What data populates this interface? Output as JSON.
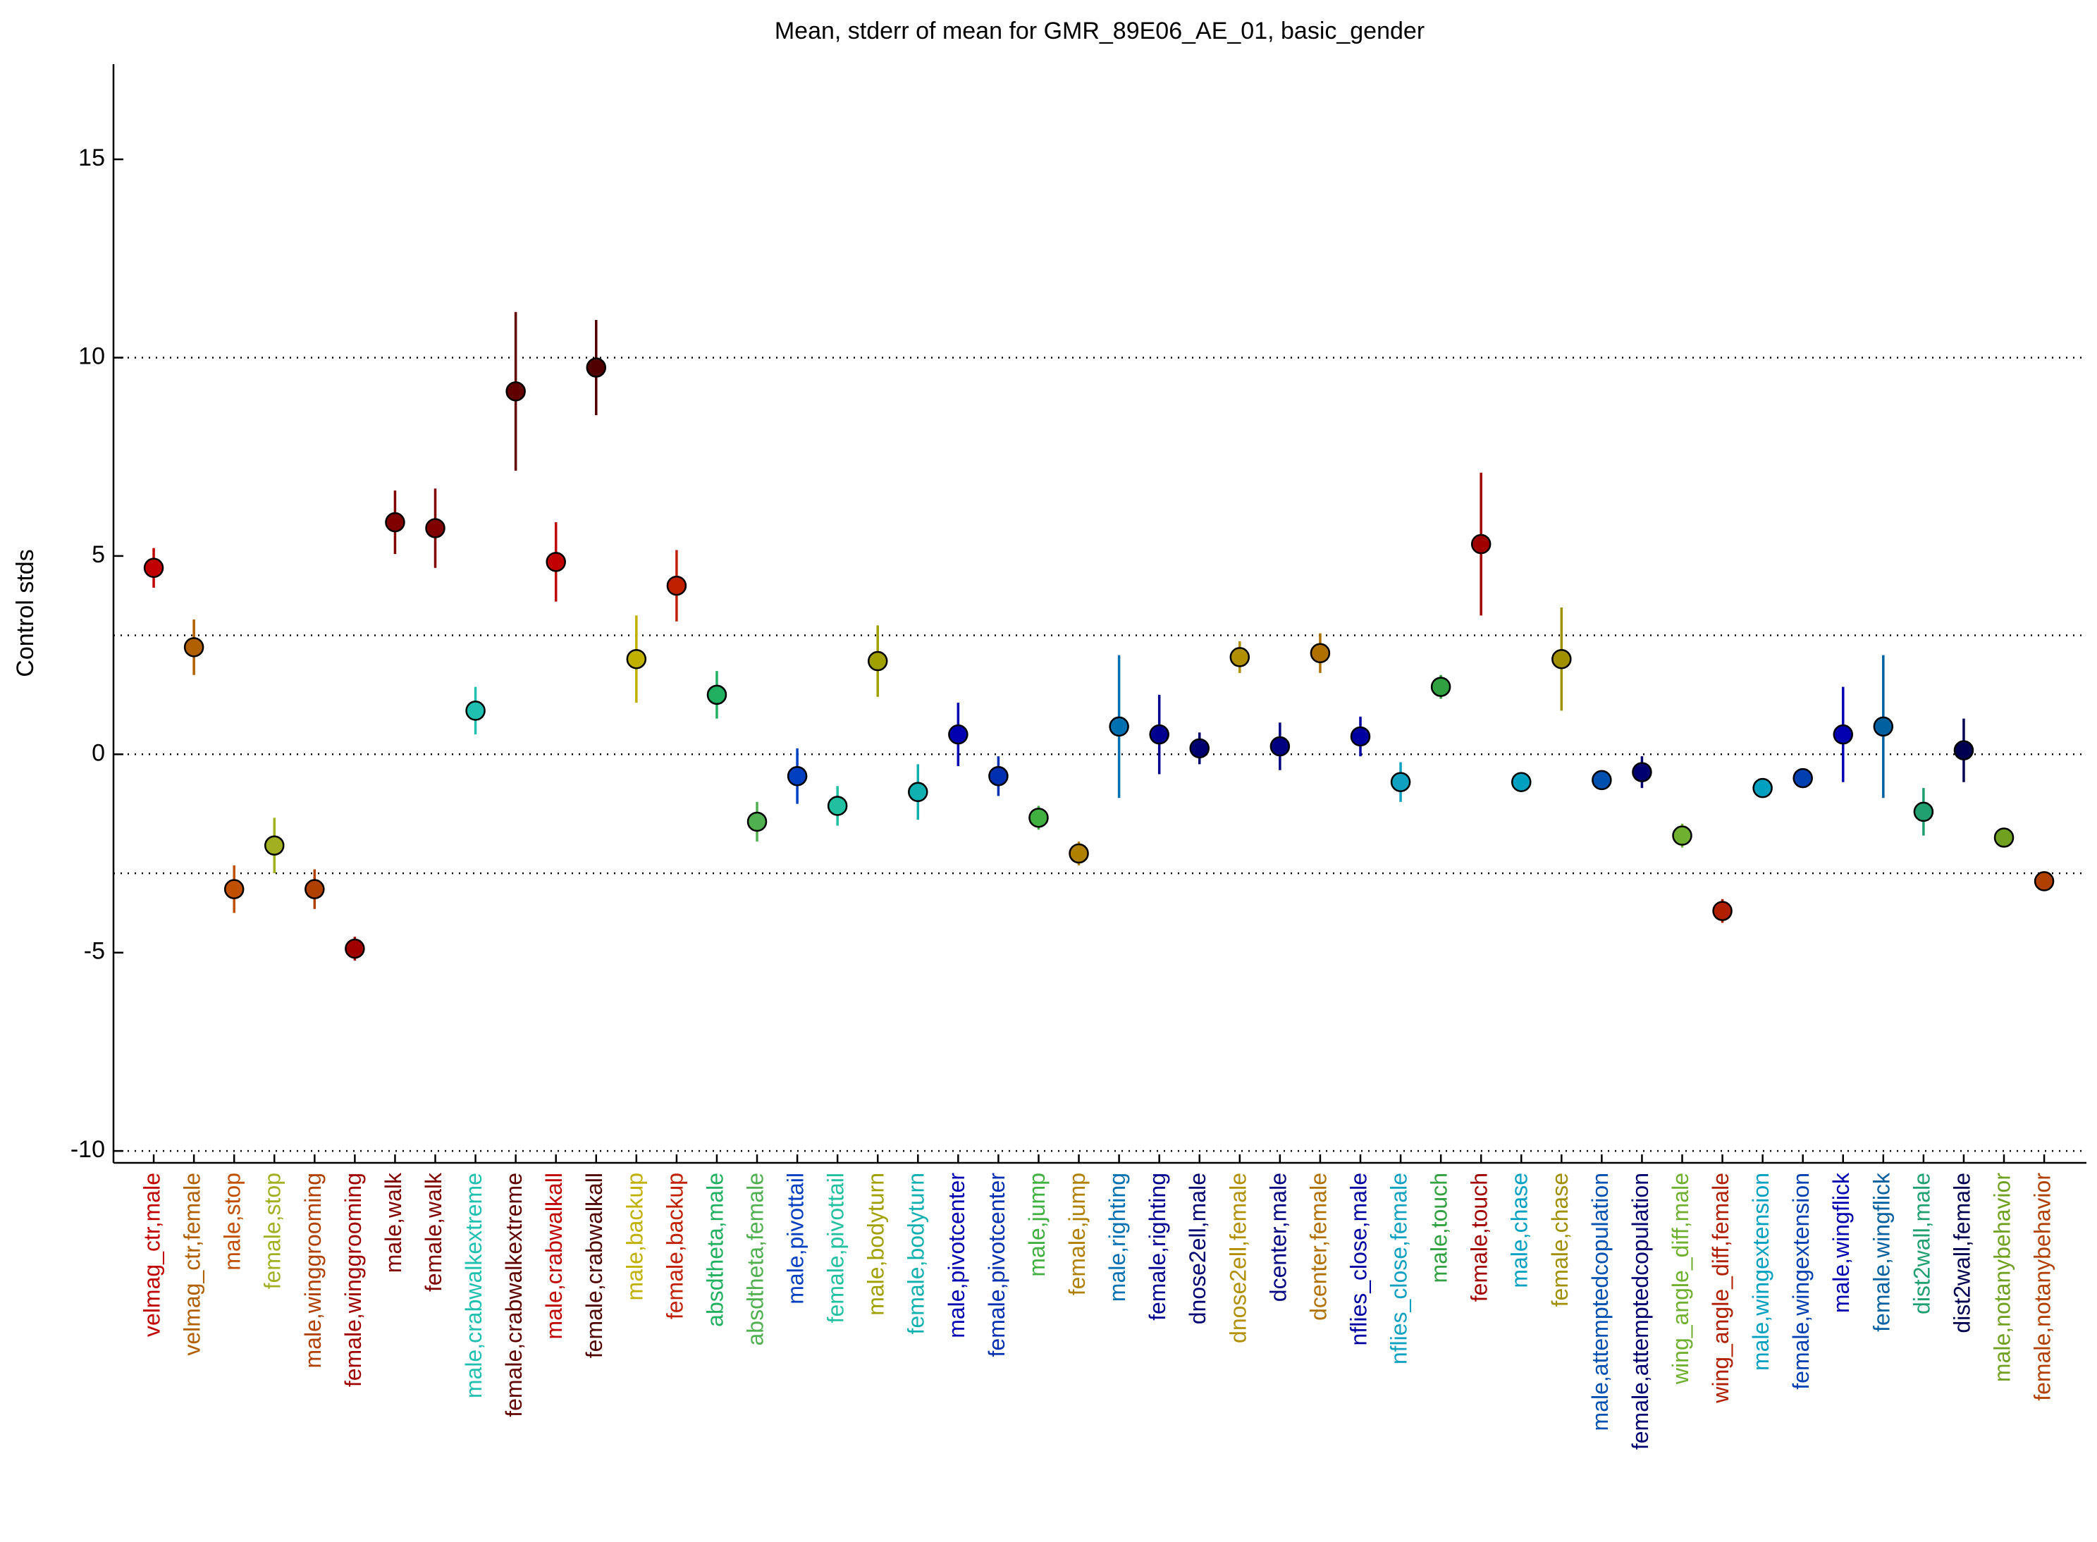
{
  "chart_data": {
    "type": "errorbar",
    "title": "Mean, stderr of mean for GMR_89E06_AE_01, basic_gender",
    "ylabel": "Control stds",
    "categories": [
      "velmag_ctr,male",
      "velmag_ctr,female",
      "male,stop",
      "female,stop",
      "male,winggrooming",
      "female,winggrooming",
      "male,walk",
      "female,walk",
      "male,crabwalkextreme",
      "female,crabwalkextreme",
      "male,crabwalkall",
      "female,crabwalkall",
      "male,backup",
      "female,backup",
      "absdtheta,male",
      "absdtheta,female",
      "male,pivottail",
      "female,pivottail",
      "male,bodyturn",
      "female,bodyturn",
      "male,pivotcenter",
      "female,pivotcenter",
      "male,jump",
      "female,jump",
      "male,righting",
      "female,righting",
      "dnose2ell,male",
      "dnose2ell,female",
      "dcenter,male",
      "dcenter,female",
      "nflies_close,male",
      "nflies_close,female",
      "male,touch",
      "female,touch",
      "male,chase",
      "female,chase",
      "male,attemptedcopulation",
      "female,attemptedcopulation",
      "wing_angle_diff,male",
      "wing_angle_diff,female",
      "male,wingextension",
      "female,wingextension",
      "male,wingflick",
      "female,wingflick",
      "dist2wall,male",
      "dist2wall,female",
      "male,notanybehavior",
      "female,notanybehavior"
    ],
    "values": [
      4.7,
      2.7,
      -3.4,
      -2.3,
      -3.4,
      -4.9,
      5.85,
      5.7,
      1.1,
      9.15,
      4.85,
      9.75,
      2.4,
      4.25,
      1.5,
      -1.7,
      -0.55,
      -1.3,
      2.35,
      -0.95,
      0.5,
      -0.55,
      -1.6,
      -2.5,
      0.7,
      0.5,
      0.15,
      2.45,
      0.2,
      2.55,
      0.45,
      -0.7,
      1.7,
      5.3,
      -0.7,
      2.4,
      -0.65,
      -0.45,
      -2.05,
      -3.95,
      -0.85,
      -0.6,
      0.5,
      0.7,
      -1.45,
      0.1,
      -2.1,
      -3.2
    ],
    "errors": [
      0.5,
      0.7,
      0.6,
      0.7,
      0.5,
      0.3,
      0.8,
      1.0,
      0.6,
      2.0,
      1.0,
      1.2,
      1.1,
      0.9,
      0.6,
      0.5,
      0.7,
      0.5,
      0.9,
      0.7,
      0.8,
      0.5,
      0.3,
      0.3,
      1.8,
      1.0,
      0.4,
      0.4,
      0.6,
      0.5,
      0.5,
      0.5,
      0.3,
      1.8,
      0.2,
      1.3,
      0.2,
      0.4,
      0.3,
      0.3,
      0.1,
      0.1,
      1.2,
      1.8,
      0.6,
      0.8,
      0.2,
      0.2
    ],
    "colors": [
      "#c00000",
      "#b06000",
      "#c05000",
      "#a0b020",
      "#b04000",
      "#a00000",
      "#800000",
      "#800000",
      "#20c0b0",
      "#600000",
      "#c00000",
      "#500000",
      "#c0b000",
      "#c02000",
      "#20b060",
      "#50b050",
      "#0040c0",
      "#20c0a0",
      "#a0a000",
      "#10b0b0",
      "#0000b0",
      "#0030b0",
      "#40b040",
      "#b08000",
      "#0070b0",
      "#000090",
      "#000070",
      "#b09000",
      "#000080",
      "#b07000",
      "#0000a0",
      "#10a0c0",
      "#30a040",
      "#a00000",
      "#00a0c0",
      "#a09000",
      "#0050b0",
      "#000070",
      "#70b030",
      "#b02000",
      "#00a0c0",
      "#0040b0",
      "#0000b0",
      "#0060a0",
      "#20a070",
      "#000050",
      "#70a020",
      "#b04000"
    ],
    "ylim": [
      -10.3,
      17.4
    ],
    "yticks": [
      -10,
      -5,
      0,
      5,
      10,
      15
    ],
    "hlines": [
      -10,
      -3,
      0,
      3,
      10
    ]
  }
}
